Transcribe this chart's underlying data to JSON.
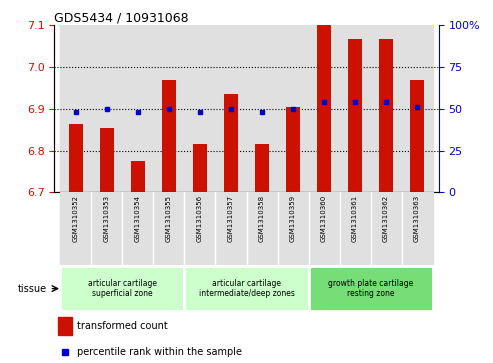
{
  "title": "GDS5434 / 10931068",
  "samples": [
    "GSM1310352",
    "GSM1310353",
    "GSM1310354",
    "GSM1310355",
    "GSM1310356",
    "GSM1310357",
    "GSM1310358",
    "GSM1310359",
    "GSM1310360",
    "GSM1310361",
    "GSM1310362",
    "GSM1310363"
  ],
  "transformed_count": [
    6.865,
    6.855,
    6.775,
    6.97,
    6.815,
    6.935,
    6.815,
    6.905,
    7.1,
    7.068,
    7.068,
    6.97
  ],
  "percentile_rank": [
    48,
    50,
    48,
    50,
    48,
    50,
    48,
    50,
    54,
    54,
    54,
    51
  ],
  "bar_color": "#cc1100",
  "dot_color": "#0000cc",
  "ylim_left": [
    6.7,
    7.1
  ],
  "ylim_right": [
    0,
    100
  ],
  "yticks_left": [
    6.7,
    6.8,
    6.9,
    7.0,
    7.1
  ],
  "yticks_right": [
    0,
    25,
    50,
    75,
    100
  ],
  "ytick_right_labels": [
    "0",
    "25",
    "50",
    "75",
    "100%"
  ],
  "grid_values": [
    6.8,
    6.9,
    7.0
  ],
  "tissue_groups": [
    {
      "label": "articular cartilage\nsuperficial zone",
      "start": 0,
      "end": 3,
      "color": "#ccffcc"
    },
    {
      "label": "articular cartilage\nintermediate/deep zones",
      "start": 4,
      "end": 7,
      "color": "#ccffcc"
    },
    {
      "label": "growth plate cartilage\nresting zone",
      "start": 8,
      "end": 11,
      "color": "#77dd77"
    }
  ],
  "tissue_label": "tissue",
  "legend_bar_label": "transformed count",
  "legend_dot_label": "percentile rank within the sample",
  "bar_width": 0.45,
  "col_bg_color": "#e0e0e0"
}
